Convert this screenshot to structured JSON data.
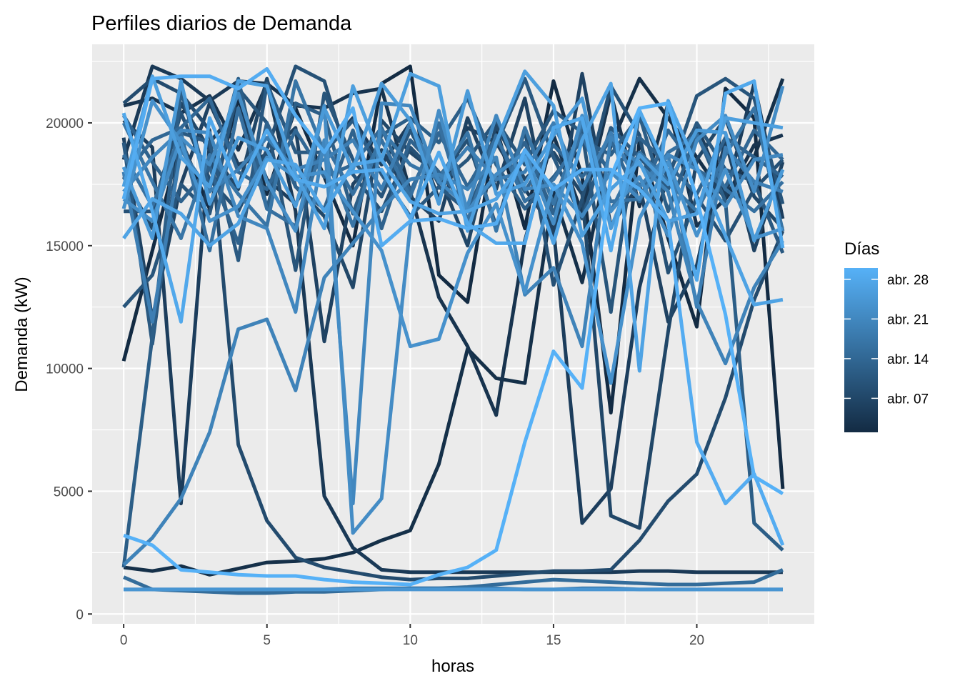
{
  "chart_data": {
    "type": "line",
    "title": "Perfiles diarios de Demanda",
    "xlabel": "horas",
    "ylabel": "Demanda (kW)",
    "xlim": [
      -1.1,
      24.1
    ],
    "ylim": [
      -400,
      23200
    ],
    "x_ticks": [
      0,
      5,
      10,
      15,
      20
    ],
    "y_ticks": [
      0,
      5000,
      10000,
      15000,
      20000
    ],
    "x_tick_labels": [
      "0",
      "5",
      "10",
      "15",
      "20"
    ],
    "y_tick_labels": [
      "0",
      "5000",
      "10000",
      "15000",
      "20000"
    ],
    "grid": true,
    "background": "#ebebeb",
    "legend": {
      "title": "Días",
      "position": "right",
      "type": "colorbar",
      "labels": [
        "abr. 28",
        "abr. 21",
        "abr. 14",
        "abr. 07"
      ],
      "label_days": [
        28,
        21,
        14,
        7
      ],
      "day_range": [
        1,
        30
      ],
      "low_color": "#132b43",
      "high_color": "#56b1f7"
    },
    "x": [
      0,
      1,
      2,
      3,
      4,
      5,
      6,
      7,
      8,
      9,
      10,
      11,
      12,
      13,
      14,
      15,
      16,
      17,
      18,
      19,
      20,
      21,
      22,
      23
    ],
    "series": [
      {
        "day": 1,
        "values": [
          10300,
          14800,
          19300,
          16500,
          21000,
          17100,
          20600,
          17800,
          15000,
          21600,
          22300,
          13800,
          12700,
          19800,
          15700,
          21700,
          17800,
          8200,
          19300,
          15300,
          11700,
          21400,
          20200,
          5100
        ]
      },
      {
        "day": 2,
        "values": [
          1900,
          1750,
          1950,
          1600,
          1850,
          2100,
          2150,
          2250,
          2500,
          3000,
          3400,
          6100,
          10800,
          9600,
          9400,
          17200,
          13500,
          19100,
          21800,
          20200,
          18600,
          16900,
          18600,
          21800
        ]
      },
      {
        "day": 3,
        "values": [
          20700,
          21000,
          20400,
          21100,
          18900,
          21600,
          20700,
          20600,
          21200,
          21400,
          17200,
          12900,
          10900,
          8100,
          15200,
          19500,
          16300,
          21200,
          16600,
          20800,
          15800,
          16900,
          19100,
          19500
        ]
      },
      {
        "day": 4,
        "values": [
          18500,
          22300,
          21800,
          20900,
          21700,
          21600,
          16400,
          4800,
          2700,
          1800,
          1700,
          1700,
          1700,
          1700,
          1700,
          1700,
          1700,
          1700,
          1750,
          1750,
          1700,
          1700,
          1700,
          1700
        ]
      },
      {
        "day": 5,
        "values": [
          20100,
          19000,
          4500,
          19200,
          20600,
          17700,
          16700,
          18900,
          20200,
          18300,
          20000,
          16900,
          19800,
          19200,
          17300,
          15700,
          3700,
          5100,
          13300,
          18000,
          19900,
          17000,
          21600,
          16100
        ]
      },
      {
        "day": 6,
        "values": [
          19400,
          12000,
          17500,
          20800,
          18300,
          18700,
          19800,
          11100,
          17500,
          18900,
          17000,
          16000,
          20200,
          17300,
          21000,
          15300,
          22000,
          15800,
          17500,
          11900,
          14200,
          19300,
          14800,
          18400
        ]
      },
      {
        "day": 7,
        "values": [
          17800,
          15700,
          20800,
          18900,
          17300,
          21800,
          17400,
          16200,
          13300,
          20100,
          18800,
          17900,
          15000,
          19900,
          17700,
          18800,
          17100,
          4000,
          3500,
          11500,
          18500,
          20200,
          17000,
          15700
        ]
      },
      {
        "day": 8,
        "values": [
          20800,
          21800,
          21200,
          19700,
          6900,
          3800,
          2300,
          1900,
          1700,
          1500,
          1400,
          1450,
          1450,
          1550,
          1650,
          1750,
          1750,
          1800,
          3000,
          4600,
          5700,
          8800,
          12800,
          15600
        ]
      },
      {
        "day": 9,
        "values": [
          16400,
          16400,
          20400,
          17700,
          16400,
          18900,
          22300,
          21700,
          17900,
          16400,
          19000,
          17800,
          19300,
          15800,
          19700,
          13400,
          16900,
          21500,
          19500,
          13900,
          17000,
          15200,
          17300,
          18500
        ]
      },
      {
        "day": 10,
        "values": [
          12500,
          13800,
          17500,
          16300,
          21400,
          20000,
          14000,
          21200,
          18500,
          17000,
          19700,
          17500,
          18500,
          20100,
          18300,
          20500,
          19600,
          12300,
          20500,
          17700,
          21100,
          21800,
          21000,
          16700
        ]
      },
      {
        "day": 11,
        "values": [
          19200,
          11000,
          19600,
          19200,
          14400,
          21600,
          18800,
          18800,
          20100,
          17900,
          16200,
          17400,
          16400,
          19100,
          21800,
          18600,
          16100,
          19800,
          18600,
          17300,
          20000,
          18100,
          17600,
          14700
        ]
      },
      {
        "day": 12,
        "values": [
          1900,
          11300,
          21300,
          17300,
          21800,
          16500,
          20800,
          20300,
          16300,
          19500,
          20200,
          19200,
          21000,
          18300,
          16500,
          17800,
          19300,
          18700,
          20300,
          16400,
          19600,
          16800,
          3700,
          2600
        ]
      },
      {
        "day": 13,
        "values": [
          20300,
          18400,
          16800,
          18200,
          15100,
          20000,
          17400,
          16500,
          19700,
          15700,
          19300,
          18000,
          16600,
          17700,
          19200,
          16300,
          19800,
          17900,
          19400,
          18300,
          17100,
          19400,
          18600,
          17800
        ]
      },
      {
        "day": 14,
        "values": [
          17800,
          19300,
          19800,
          21000,
          18000,
          17300,
          19700,
          17800,
          18300,
          19800,
          17200,
          19600,
          17400,
          19400,
          17200,
          19100,
          17800,
          19300,
          16800,
          19700,
          18100,
          17400,
          19700,
          18500
        ]
      },
      {
        "day": 15,
        "values": [
          1500,
          1000,
          950,
          900,
          850,
          850,
          900,
          900,
          950,
          1000,
          1050,
          1050,
          1100,
          1200,
          1300,
          1400,
          1350,
          1300,
          1250,
          1200,
          1200,
          1250,
          1300,
          1800
        ]
      },
      {
        "day": 16,
        "values": [
          18700,
          16600,
          19600,
          14800,
          20600,
          16500,
          15800,
          19200,
          17100,
          19300,
          17000,
          20000,
          16000,
          19500,
          16800,
          17700,
          19500,
          16800,
          16900,
          18800,
          19500,
          17300,
          16400,
          17600
        ]
      },
      {
        "day": 17,
        "values": [
          20000,
          17600,
          15300,
          18700,
          17100,
          15800,
          21700,
          18800,
          15800,
          19700,
          18300,
          17700,
          19600,
          15600,
          19800,
          16700,
          20000,
          16400,
          18800,
          17600,
          16400,
          18700,
          20600,
          15600
        ]
      },
      {
        "day": 18,
        "values": [
          1000,
          1000,
          1000,
          1000,
          1000,
          1000,
          1000,
          1000,
          1050,
          1050,
          1050,
          1050,
          1050,
          1050,
          1000,
          1000,
          1050,
          1050,
          1000,
          1000,
          1000,
          1000,
          1000,
          1000
        ]
      },
      {
        "day": 19,
        "values": [
          18000,
          11900,
          18900,
          17200,
          18100,
          19400,
          18100,
          18500,
          19300,
          17300,
          20000,
          17600,
          19000,
          17700,
          18000,
          20000,
          17300,
          19600,
          17400,
          18700,
          12500,
          19000,
          17600,
          17200
        ]
      },
      {
        "day": 20,
        "values": [
          2000,
          3100,
          4700,
          7400,
          11600,
          12000,
          9100,
          13700,
          15100,
          16500,
          17700,
          17900,
          17300,
          18600,
          13000,
          14100,
          10900,
          19400,
          18300,
          17200,
          12700,
          10200,
          13300,
          15200
        ]
      },
      {
        "day": 21,
        "values": [
          17200,
          18600,
          19700,
          19600,
          16200,
          15700,
          12300,
          19300,
          4500,
          20800,
          20700,
          17600,
          16600,
          20300,
          17300,
          17500,
          16200,
          18000,
          16900,
          18700,
          18100,
          16600,
          18500,
          18700
        ]
      },
      {
        "day": 22,
        "values": [
          16900,
          16000,
          19400,
          18300,
          21200,
          17600,
          15600,
          20700,
          3300,
          4700,
          15800,
          20500,
          16400,
          17900,
          18800,
          15900,
          20300,
          16400,
          17800,
          15400,
          19300,
          20300,
          17200,
          21500
        ]
      },
      {
        "day": 23,
        "values": [
          16500,
          20900,
          19200,
          16000,
          16600,
          18600,
          17800,
          18000,
          16400,
          14800,
          10900,
          11200,
          14700,
          16700,
          13100,
          17500,
          15100,
          9400,
          16100,
          18400,
          15400,
          18100,
          15300,
          15700
        ]
      },
      {
        "day": 24,
        "values": [
          1000,
          1000,
          1000,
          1000,
          1000,
          1000,
          1000,
          1000,
          1000,
          1000,
          1000,
          1000,
          1000,
          1000,
          1000,
          1000,
          1000,
          1000,
          1000,
          1000,
          1000,
          1000,
          1000,
          1000
        ]
      },
      {
        "day": 25,
        "values": [
          18200,
          15300,
          21700,
          16700,
          19400,
          18900,
          16600,
          20600,
          18100,
          21600,
          20100,
          16700,
          21300,
          17100,
          17500,
          19500,
          21000,
          15700,
          18700,
          17500,
          19700,
          19600,
          15200,
          18100
        ]
      },
      {
        "day": 26,
        "values": [
          17400,
          21900,
          18600,
          17400,
          21700,
          21500,
          17900,
          15700,
          21500,
          18500,
          22000,
          21500,
          15600,
          19200,
          22100,
          20700,
          15400,
          17300,
          18400,
          16000,
          16300,
          20200,
          20000,
          19800
        ]
      },
      {
        "day": 27,
        "values": [
          15300,
          16900,
          16300,
          15000,
          15900,
          18500,
          18300,
          16400,
          18300,
          18500,
          16800,
          16300,
          16400,
          16900,
          18600,
          15100,
          19300,
          21600,
          9900,
          20900,
          18200,
          15400,
          12600,
          12800
        ]
      },
      {
        "day": 28,
        "values": [
          20400,
          16400,
          11900,
          20200,
          17400,
          19700,
          17700,
          17400,
          18000,
          18100,
          16100,
          18800,
          15900,
          15100,
          15100,
          19800,
          20200,
          14800,
          20500,
          18000,
          13600,
          21200,
          21700,
          14900
        ]
      },
      {
        "day": 29,
        "values": [
          16900,
          21800,
          21900,
          21900,
          21400,
          22200,
          20300,
          18800,
          20600,
          15000,
          16000,
          16100,
          15700,
          15900,
          18900,
          17300,
          18100,
          18100,
          17300,
          16000,
          7000,
          4500,
          5700,
          2800
        ]
      },
      {
        "day": 30,
        "values": [
          3200,
          2800,
          1800,
          1700,
          1600,
          1550,
          1550,
          1400,
          1300,
          1250,
          1200,
          1600,
          1900,
          2600,
          7000,
          10700,
          9200,
          17800,
          20600,
          20800,
          16900,
          12200,
          5600,
          4900
        ]
      }
    ]
  }
}
